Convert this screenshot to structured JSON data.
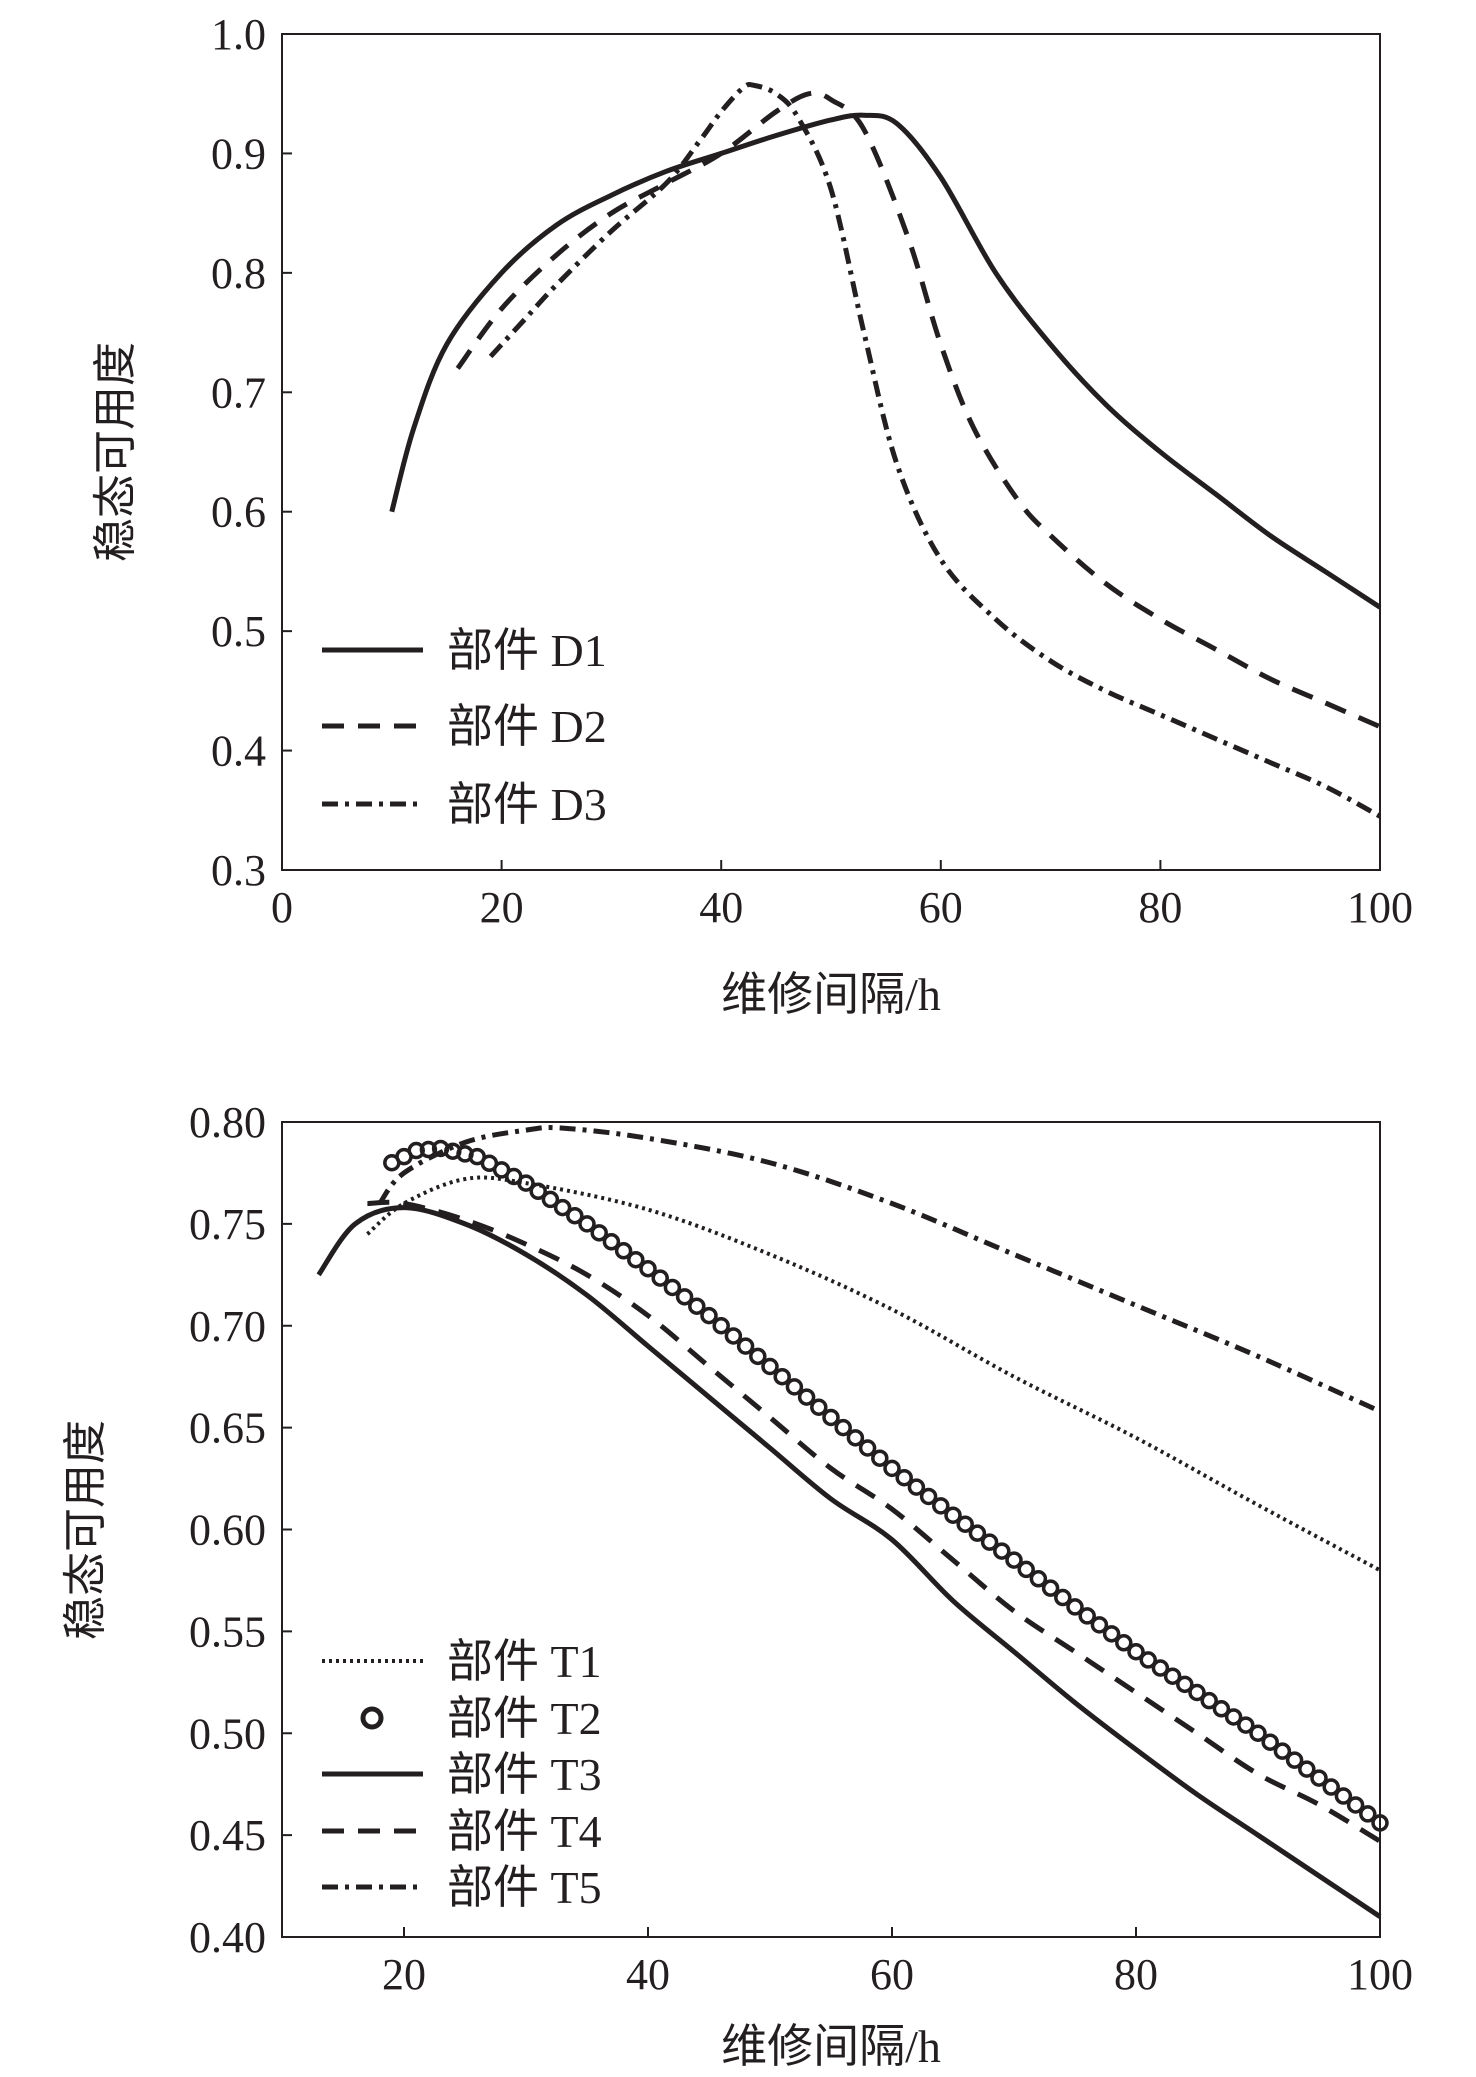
{
  "chart_data": [
    {
      "type": "line",
      "xlabel": "维修间隔/h",
      "ylabel": "稳态可用度",
      "xlim": [
        0,
        100
      ],
      "ylim": [
        0.3,
        1.0
      ],
      "xticks": [
        "0",
        "20",
        "40",
        "60",
        "80",
        "100"
      ],
      "yticks": [
        "0.3",
        "0.4",
        "0.5",
        "0.6",
        "0.7",
        "0.8",
        "0.9",
        "1.0"
      ],
      "legend_position": "bottom-left",
      "series": [
        {
          "name": "部件 D1",
          "style": "solid",
          "x": [
            10,
            12,
            15,
            20,
            25,
            30,
            35,
            40,
            45,
            50,
            53,
            56,
            60,
            65,
            70,
            75,
            80,
            85,
            90,
            95,
            100
          ],
          "y": [
            0.6,
            0.67,
            0.74,
            0.8,
            0.84,
            0.865,
            0.885,
            0.9,
            0.915,
            0.928,
            0.932,
            0.925,
            0.88,
            0.8,
            0.74,
            0.69,
            0.65,
            0.615,
            0.58,
            0.55,
            0.52
          ]
        },
        {
          "name": "部件 D2",
          "style": "dash",
          "x": [
            16,
            20,
            25,
            30,
            35,
            40,
            45,
            48,
            50,
            53,
            57,
            60,
            63,
            67,
            70,
            75,
            80,
            85,
            90,
            95,
            100
          ],
          "y": [
            0.72,
            0.77,
            0.815,
            0.85,
            0.875,
            0.9,
            0.935,
            0.95,
            0.945,
            0.92,
            0.83,
            0.74,
            0.67,
            0.61,
            0.58,
            0.54,
            0.51,
            0.485,
            0.46,
            0.44,
            0.42
          ]
        },
        {
          "name": "部件 D3",
          "style": "dashdot",
          "x": [
            19,
            22,
            25,
            30,
            35,
            38,
            40,
            42,
            43,
            45,
            47,
            50,
            53,
            56,
            60,
            65,
            70,
            75,
            80,
            85,
            90,
            95,
            100
          ],
          "y": [
            0.73,
            0.76,
            0.79,
            0.835,
            0.875,
            0.91,
            0.935,
            0.955,
            0.957,
            0.95,
            0.93,
            0.87,
            0.75,
            0.64,
            0.56,
            0.51,
            0.475,
            0.45,
            0.43,
            0.41,
            0.39,
            0.37,
            0.345
          ]
        }
      ]
    },
    {
      "type": "line",
      "xlabel": "维修间隔/h",
      "ylabel": "稳态可用度",
      "xlim": [
        10,
        100
      ],
      "ylim": [
        0.4,
        0.8
      ],
      "xticks": [
        "20",
        "40",
        "60",
        "80",
        "100"
      ],
      "yticks": [
        "0.40",
        "0.45",
        "0.50",
        "0.55",
        "0.60",
        "0.65",
        "0.70",
        "0.75",
        "0.80"
      ],
      "legend_position": "bottom-left",
      "series": [
        {
          "name": "部件 T1",
          "style": "dot",
          "x": [
            17,
            20,
            25,
            30,
            40,
            50,
            60,
            70,
            80,
            90,
            100
          ],
          "y": [
            0.745,
            0.76,
            0.772,
            0.77,
            0.757,
            0.735,
            0.708,
            0.675,
            0.645,
            0.612,
            0.58
          ]
        },
        {
          "name": "部件 T2",
          "style": "circle",
          "x": [
            19,
            21,
            23,
            26,
            30,
            35,
            40,
            45,
            50,
            55,
            60,
            65,
            70,
            75,
            80,
            85,
            90,
            95,
            100
          ],
          "y": [
            0.78,
            0.786,
            0.787,
            0.783,
            0.77,
            0.75,
            0.728,
            0.705,
            0.68,
            0.655,
            0.63,
            0.607,
            0.585,
            0.562,
            0.54,
            0.52,
            0.5,
            0.478,
            0.456
          ]
        },
        {
          "name": "部件 T3",
          "style": "solid",
          "x": [
            13,
            16,
            20,
            25,
            30,
            35,
            40,
            45,
            50,
            55,
            60,
            65,
            70,
            75,
            80,
            85,
            90,
            95,
            100
          ],
          "y": [
            0.725,
            0.75,
            0.758,
            0.75,
            0.735,
            0.715,
            0.69,
            0.665,
            0.64,
            0.615,
            0.595,
            0.565,
            0.54,
            0.515,
            0.492,
            0.47,
            0.45,
            0.43,
            0.41
          ]
        },
        {
          "name": "部件 T4",
          "style": "dash",
          "x": [
            17,
            20,
            25,
            30,
            35,
            40,
            45,
            50,
            55,
            60,
            65,
            70,
            75,
            80,
            85,
            90,
            95,
            100
          ],
          "y": [
            0.76,
            0.76,
            0.752,
            0.74,
            0.725,
            0.705,
            0.68,
            0.655,
            0.63,
            0.61,
            0.585,
            0.56,
            0.54,
            0.52,
            0.5,
            0.48,
            0.465,
            0.447
          ]
        },
        {
          "name": "部件 T5",
          "style": "dashdot",
          "x": [
            18,
            20,
            25,
            30,
            33,
            40,
            50,
            60,
            70,
            80,
            90,
            100
          ],
          "y": [
            0.76,
            0.775,
            0.79,
            0.796,
            0.797,
            0.792,
            0.78,
            0.76,
            0.735,
            0.71,
            0.685,
            0.658
          ]
        }
      ]
    }
  ]
}
